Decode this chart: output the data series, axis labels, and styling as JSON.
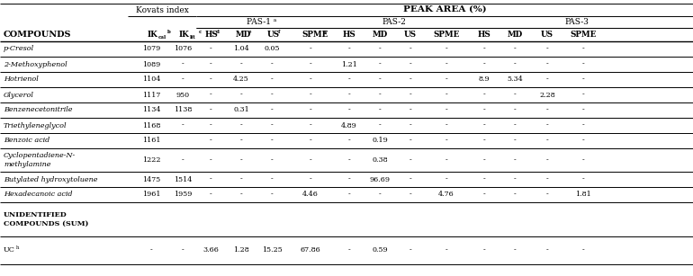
{
  "rows": [
    [
      "p-Cresol",
      "1079",
      "1076",
      "-",
      "1.04",
      "0.05",
      "-",
      "-",
      "-",
      "-",
      "-",
      "-",
      "-",
      "-",
      "-"
    ],
    [
      "2-Methoxyphenol",
      "1089",
      "-",
      "-",
      "-",
      "-",
      "-",
      "1.21",
      "-",
      "-",
      "-",
      "-",
      "-",
      "-",
      "-"
    ],
    [
      "Hotrienol",
      "1104",
      "-",
      "-",
      "4.25",
      "-",
      "-",
      "-",
      "-",
      "-",
      "-",
      "8.9",
      "5.34",
      "-",
      "-"
    ],
    [
      "Glycerol",
      "1117",
      "950",
      "-",
      "-",
      "-",
      "-",
      "-",
      "-",
      "-",
      "-",
      "-",
      "-",
      "2.28",
      "-"
    ],
    [
      "Benzenecetonitrile",
      "1134",
      "1138",
      "-",
      "0.31",
      "-",
      "-",
      "-",
      "-",
      "-",
      "-",
      "-",
      "-",
      "-",
      "-"
    ],
    [
      "Triethyleneglycol",
      "1168",
      "-",
      "-",
      "-",
      "-",
      "-",
      "4.89",
      "-",
      "-",
      "-",
      "-",
      "-",
      "-",
      "-"
    ],
    [
      "Benzoic acid",
      "1161",
      "",
      "-",
      "-",
      "-",
      "-",
      "-",
      "0.19",
      "-",
      "-",
      "-",
      "-",
      "-",
      "-"
    ],
    [
      "Cyclopentadiene-N-|methylamine",
      "1222",
      "-",
      "-",
      "-",
      "-",
      "-",
      "-",
      "0.38",
      "-",
      "-",
      "-",
      "-",
      "-",
      "-"
    ],
    [
      "Butylated hydroxytoluene",
      "1475",
      "1514",
      "-",
      "-",
      "-",
      "-",
      "-",
      "96.69",
      "-",
      "-",
      "-",
      "-",
      "-",
      "-"
    ],
    [
      "Hexadecanoic acid",
      "1961",
      "1959",
      "-",
      "-",
      "-",
      "4.46",
      "-",
      "-",
      "-",
      "4.76",
      "-",
      "-",
      "-",
      "1.81"
    ],
    [
      "UNIDENTIFIED|COMPOUNDS (SUM)",
      "",
      "",
      "",
      "",
      "",
      "",
      "",
      "",
      "",
      "",
      "",
      "",
      "",
      ""
    ],
    [
      "UCh",
      "-",
      "-",
      "3.66",
      "1.28",
      "15.25",
      "67.86",
      "-",
      "0.59",
      "-",
      "-",
      "-",
      "-",
      "-",
      "-"
    ]
  ]
}
